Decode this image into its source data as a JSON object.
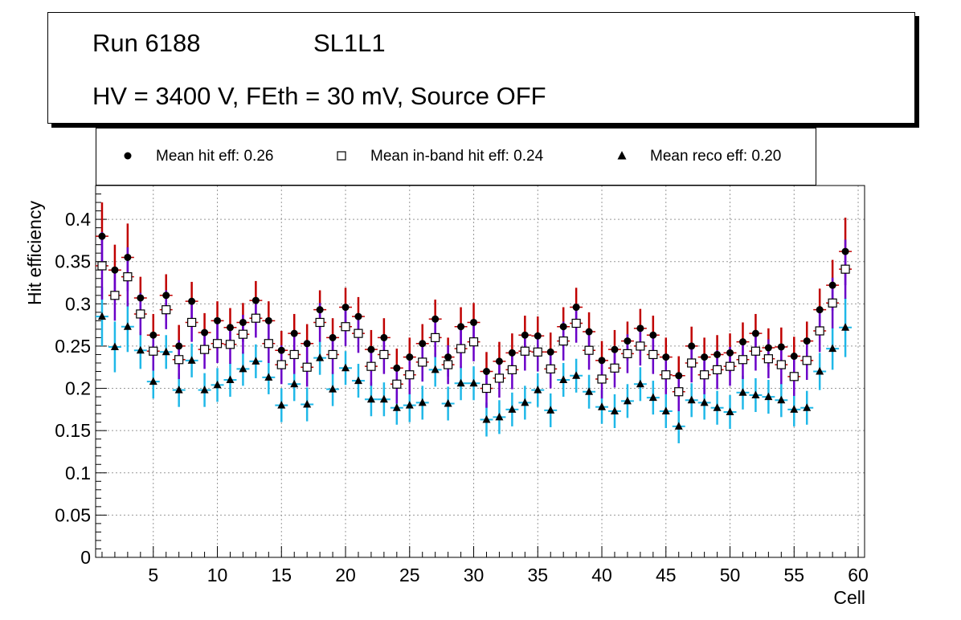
{
  "header": {
    "run_label": "Run 6188",
    "layer_label": "SL1L1",
    "conditions": "HV = 3400 V, FEth = 30 mV, Source OFF"
  },
  "legend": {
    "hit": "Mean hit  eff: 0.26",
    "inband": "Mean in-band hit eff: 0.24",
    "reco": "Mean reco eff: 0.20"
  },
  "colors": {
    "hit_err": "#c00000",
    "hit_err2": "#6a00c8",
    "inband_err": "#6a00c8",
    "reco_err": "#1fb8e8",
    "marker": "#000000",
    "grid": "#999999"
  },
  "chart_data": {
    "type": "scatter",
    "title": "Run 6188 SL1L1 - HV = 3400 V, FEth = 30 mV, Source OFF",
    "xlabel": "Cell",
    "ylabel": "Hit efficiency",
    "xlim": [
      0.5,
      60.5
    ],
    "ylim": [
      0,
      0.44
    ],
    "xticks": [
      5,
      10,
      15,
      20,
      25,
      30,
      35,
      40,
      45,
      50,
      55,
      60
    ],
    "yticks": [
      0,
      0.05,
      0.1,
      0.15,
      0.2,
      0.25,
      0.3,
      0.35,
      0.4
    ],
    "ytick_labels": [
      "0",
      "0.05",
      "0.1",
      "0.15",
      "0.2",
      "0.25",
      "0.3",
      "0.35",
      "0.4"
    ],
    "grid": true,
    "x": [
      1,
      2,
      3,
      4,
      5,
      6,
      7,
      8,
      9,
      10,
      11,
      12,
      13,
      14,
      15,
      16,
      17,
      18,
      19,
      20,
      21,
      22,
      23,
      24,
      25,
      26,
      27,
      28,
      29,
      30,
      31,
      32,
      33,
      34,
      35,
      36,
      37,
      38,
      39,
      40,
      41,
      42,
      43,
      44,
      45,
      46,
      47,
      48,
      49,
      50,
      51,
      52,
      53,
      54,
      55,
      56,
      57,
      58,
      59
    ],
    "series": [
      {
        "name": "Mean hit  eff: 0.26",
        "marker": "circle",
        "values": [
          0.38,
          0.34,
          0.355,
          0.307,
          0.263,
          0.31,
          0.25,
          0.303,
          0.266,
          0.28,
          0.272,
          0.278,
          0.304,
          0.28,
          0.245,
          0.265,
          0.253,
          0.293,
          0.26,
          0.296,
          0.285,
          0.246,
          0.26,
          0.224,
          0.237,
          0.253,
          0.282,
          0.237,
          0.273,
          0.278,
          0.22,
          0.232,
          0.242,
          0.263,
          0.262,
          0.243,
          0.273,
          0.296,
          0.267,
          0.233,
          0.246,
          0.256,
          0.271,
          0.263,
          0.237,
          0.215,
          0.25,
          0.237,
          0.24,
          0.242,
          0.255,
          0.265,
          0.248,
          0.249,
          0.238,
          0.256,
          0.293,
          0.322,
          0.362
        ],
        "errors": [
          0.04,
          0.03,
          0.04,
          0.025,
          0.025,
          0.025,
          0.025,
          0.023,
          0.023,
          0.023,
          0.023,
          0.023,
          0.023,
          0.023,
          0.023,
          0.023,
          0.023,
          0.023,
          0.023,
          0.023,
          0.023,
          0.023,
          0.023,
          0.023,
          0.023,
          0.023,
          0.023,
          0.023,
          0.023,
          0.023,
          0.023,
          0.023,
          0.023,
          0.023,
          0.023,
          0.023,
          0.023,
          0.023,
          0.023,
          0.023,
          0.023,
          0.023,
          0.023,
          0.023,
          0.023,
          0.023,
          0.023,
          0.023,
          0.023,
          0.023,
          0.023,
          0.023,
          0.023,
          0.023,
          0.023,
          0.023,
          0.025,
          0.03,
          0.04
        ]
      },
      {
        "name": "Mean in-band hit eff: 0.24",
        "marker": "open-square",
        "values": [
          0.345,
          0.31,
          0.332,
          0.288,
          0.244,
          0.293,
          0.234,
          0.278,
          0.246,
          0.253,
          0.252,
          0.264,
          0.283,
          0.253,
          0.228,
          0.24,
          0.225,
          0.278,
          0.24,
          0.273,
          0.265,
          0.226,
          0.24,
          0.205,
          0.216,
          0.231,
          0.26,
          0.228,
          0.247,
          0.255,
          0.2,
          0.212,
          0.222,
          0.244,
          0.243,
          0.223,
          0.256,
          0.277,
          0.245,
          0.211,
          0.224,
          0.241,
          0.25,
          0.24,
          0.216,
          0.196,
          0.23,
          0.216,
          0.222,
          0.226,
          0.234,
          0.244,
          0.235,
          0.228,
          0.214,
          0.233,
          0.268,
          0.301,
          0.341
        ],
        "errors": [
          0.04,
          0.03,
          0.035,
          0.025,
          0.023,
          0.023,
          0.023,
          0.023,
          0.023,
          0.023,
          0.023,
          0.023,
          0.023,
          0.023,
          0.023,
          0.023,
          0.023,
          0.023,
          0.023,
          0.023,
          0.023,
          0.023,
          0.023,
          0.023,
          0.023,
          0.023,
          0.023,
          0.023,
          0.023,
          0.023,
          0.023,
          0.023,
          0.023,
          0.023,
          0.023,
          0.023,
          0.023,
          0.023,
          0.023,
          0.023,
          0.023,
          0.023,
          0.023,
          0.023,
          0.023,
          0.023,
          0.023,
          0.023,
          0.023,
          0.023,
          0.023,
          0.023,
          0.023,
          0.023,
          0.023,
          0.023,
          0.025,
          0.03,
          0.035
        ]
      },
      {
        "name": "Mean reco eff: 0.20",
        "marker": "triangle",
        "values": [
          0.285,
          0.249,
          0.273,
          0.245,
          0.208,
          0.243,
          0.198,
          0.233,
          0.198,
          0.204,
          0.21,
          0.223,
          0.232,
          0.213,
          0.18,
          0.205,
          0.181,
          0.236,
          0.199,
          0.224,
          0.209,
          0.187,
          0.187,
          0.177,
          0.18,
          0.183,
          0.222,
          0.182,
          0.206,
          0.206,
          0.163,
          0.166,
          0.175,
          0.183,
          0.198,
          0.174,
          0.21,
          0.215,
          0.196,
          0.178,
          0.173,
          0.185,
          0.205,
          0.189,
          0.173,
          0.155,
          0.186,
          0.183,
          0.177,
          0.172,
          0.195,
          0.192,
          0.19,
          0.186,
          0.175,
          0.177,
          0.22,
          0.247,
          0.272
        ],
        "errors": [
          0.035,
          0.03,
          0.03,
          0.022,
          0.02,
          0.02,
          0.02,
          0.02,
          0.02,
          0.02,
          0.02,
          0.02,
          0.02,
          0.02,
          0.02,
          0.02,
          0.02,
          0.02,
          0.02,
          0.02,
          0.02,
          0.02,
          0.02,
          0.02,
          0.02,
          0.02,
          0.02,
          0.02,
          0.02,
          0.02,
          0.02,
          0.02,
          0.02,
          0.02,
          0.02,
          0.02,
          0.02,
          0.02,
          0.02,
          0.02,
          0.02,
          0.02,
          0.02,
          0.02,
          0.02,
          0.02,
          0.02,
          0.02,
          0.02,
          0.02,
          0.02,
          0.02,
          0.02,
          0.02,
          0.02,
          0.02,
          0.022,
          0.025,
          0.035
        ]
      }
    ]
  }
}
